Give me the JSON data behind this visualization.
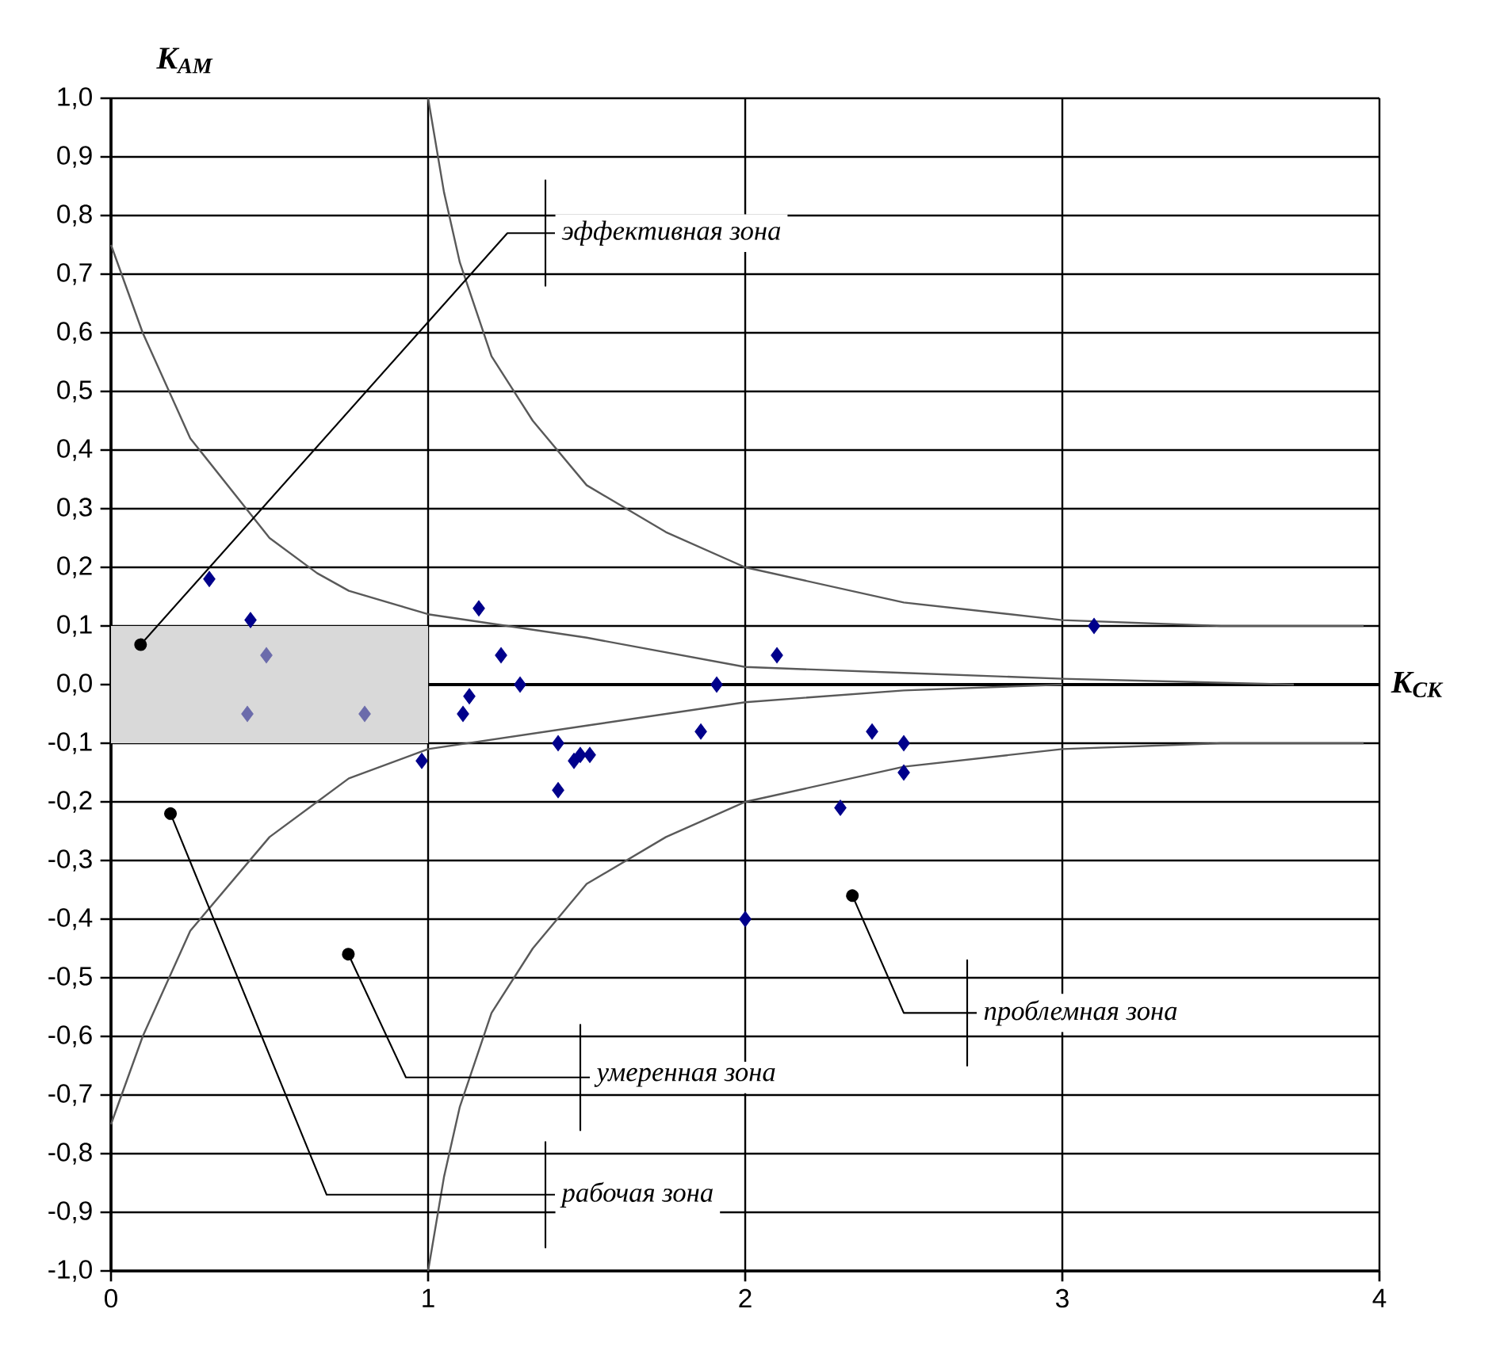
{
  "chart_data": {
    "type": "scatter",
    "xlabel": "K$_{СК}$",
    "ylabel": "K$_{АМ}$",
    "xlim": [
      0,
      4
    ],
    "ylim": [
      -1.0,
      1.0
    ],
    "xticks": [
      0,
      1,
      2,
      3,
      4
    ],
    "yticks": [
      {
        "value": 1.0,
        "label": "1,0"
      },
      {
        "value": 0.9,
        "label": "0,9"
      },
      {
        "value": 0.8,
        "label": "0,8"
      },
      {
        "value": 0.7,
        "label": "0,7"
      },
      {
        "value": 0.6,
        "label": "0,6"
      },
      {
        "value": 0.5,
        "label": "0,5"
      },
      {
        "value": 0.4,
        "label": "0,4"
      },
      {
        "value": 0.3,
        "label": "0,3"
      },
      {
        "value": 0.2,
        "label": "0,2"
      },
      {
        "value": 0.1,
        "label": "0,1"
      },
      {
        "value": 0.0,
        "label": "0,0"
      },
      {
        "value": -0.1,
        "label": "-0,1"
      },
      {
        "value": -0.2,
        "label": "-0,2"
      },
      {
        "value": -0.3,
        "label": "-0,3"
      },
      {
        "value": -0.4,
        "label": "-0,4"
      },
      {
        "value": -0.5,
        "label": "-0,5"
      },
      {
        "value": -0.6,
        "label": "-0,6"
      },
      {
        "value": -0.7,
        "label": "-0,7"
      },
      {
        "value": -0.8,
        "label": "-0,8"
      },
      {
        "value": -0.9,
        "label": "-0,9"
      },
      {
        "value": -1.0,
        "label": "-1,0"
      }
    ],
    "grid": true,
    "series": [
      {
        "type": "line",
        "color": "#d9d9d9",
        "x": [
          0,
          1
        ],
        "values": [
          null,
          null
        ],
        "lower": [
          -0.1,
          -0.1
        ],
        "upper": [
          0.1,
          0.1
        ]
      },
      {
        "type": "line",
        "color": "#595959",
        "marker": "none",
        "x": [
          1,
          1.05,
          1.1,
          1.2,
          1.33,
          1.5,
          1.75,
          2,
          2.5,
          3,
          3.5,
          3.95
        ],
        "values": [
          1.0,
          0.84,
          0.72,
          0.56,
          0.45,
          0.34,
          0.26,
          0.2,
          0.14,
          0.11,
          0.1,
          0.1
        ]
      },
      {
        "type": "line",
        "color": "#595959",
        "marker": "none",
        "x": [
          1,
          1.05,
          1.1,
          1.2,
          1.33,
          1.5,
          1.75,
          2,
          2.5,
          3,
          3.5,
          3.95
        ],
        "values": [
          -1.0,
          -0.84,
          -0.72,
          -0.56,
          -0.45,
          -0.34,
          -0.26,
          -0.2,
          -0.14,
          -0.11,
          -0.1,
          -0.1
        ]
      },
      {
        "type": "line",
        "color": "#595959",
        "marker": "none",
        "x": [
          0,
          0.1,
          0.25,
          0.5,
          0.65,
          0.75,
          1,
          1.5,
          2,
          2.5,
          3,
          3.73
        ],
        "values": [
          0.75,
          0.6,
          0.42,
          0.25,
          0.19,
          0.16,
          0.12,
          0.08,
          0.03,
          0.02,
          0.01,
          0.0
        ]
      },
      {
        "type": "line",
        "color": "#595959",
        "marker": "none",
        "x": [
          0,
          0.1,
          0.25,
          0.5,
          0.75,
          1,
          1.5,
          2,
          2.5,
          3
        ],
        "values": [
          -0.75,
          -0.6,
          -0.42,
          -0.26,
          -0.16,
          -0.11,
          -0.07,
          -0.03,
          -0.01,
          0.0
        ]
      },
      {
        "type": "scatter",
        "color": "#00008b",
        "marker": "diamond",
        "x": [
          0.31,
          0.44,
          0.98,
          1.16,
          1.23,
          1.29,
          1.13,
          1.11,
          1.41,
          1.41,
          1.46,
          1.48,
          1.51,
          1.91,
          1.86,
          2.1,
          2.4,
          2.5,
          2.5,
          2.3,
          2.0,
          3.1
        ],
        "values": [
          0.18,
          0.11,
          -0.13,
          0.13,
          0.05,
          0.0,
          -0.02,
          -0.05,
          -0.1,
          -0.18,
          -0.13,
          -0.12,
          -0.12,
          0.0,
          -0.08,
          0.05,
          -0.08,
          -0.1,
          -0.15,
          -0.21,
          -0.4,
          0.1
        ]
      },
      {
        "type": "scatter",
        "color": "#6b6bab",
        "marker": "diamond",
        "x": [
          0.49,
          0.43,
          0.8
        ],
        "values": [
          0.05,
          -0.05,
          -0.05
        ]
      }
    ],
    "annotations": [
      "эффективная зона",
      "проблемная зона",
      "умеренная зона",
      "рабочая зона"
    ]
  }
}
